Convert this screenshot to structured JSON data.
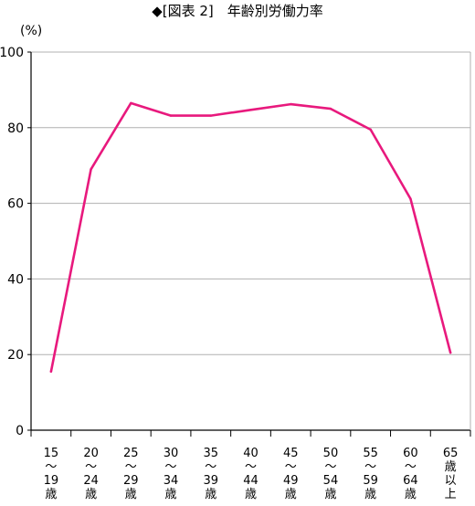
{
  "chart_data": {
    "type": "line",
    "title": "◆[図表 2]　年齢別労働力率",
    "ylabel": "(%)",
    "xlabel": "",
    "ylim": [
      0,
      100
    ],
    "yticks": [
      0,
      20,
      40,
      60,
      80,
      100
    ],
    "grid": true,
    "legend": "none",
    "categories": [
      [
        "15",
        "〜",
        "19",
        "歳"
      ],
      [
        "20",
        "〜",
        "24",
        "歳"
      ],
      [
        "25",
        "〜",
        "29",
        "歳"
      ],
      [
        "30",
        "〜",
        "34",
        "歳"
      ],
      [
        "35",
        "〜",
        "39",
        "歳"
      ],
      [
        "40",
        "〜",
        "44",
        "歳"
      ],
      [
        "45",
        "〜",
        "49",
        "歳"
      ],
      [
        "50",
        "〜",
        "54",
        "歳"
      ],
      [
        "55",
        "〜",
        "59",
        "歳"
      ],
      [
        "60",
        "〜",
        "64",
        "歳"
      ],
      [
        "65",
        "歳",
        "以",
        "上"
      ]
    ],
    "series": [
      {
        "values": [
          15.5,
          69.0,
          86.5,
          83.2,
          83.2,
          84.7,
          86.2,
          85.0,
          79.5,
          61.2,
          20.5
        ],
        "color": "#e8197d"
      }
    ],
    "colors": {
      "line": "#e8197d",
      "grid": "#b0b0b0",
      "axis": "#000000"
    }
  }
}
